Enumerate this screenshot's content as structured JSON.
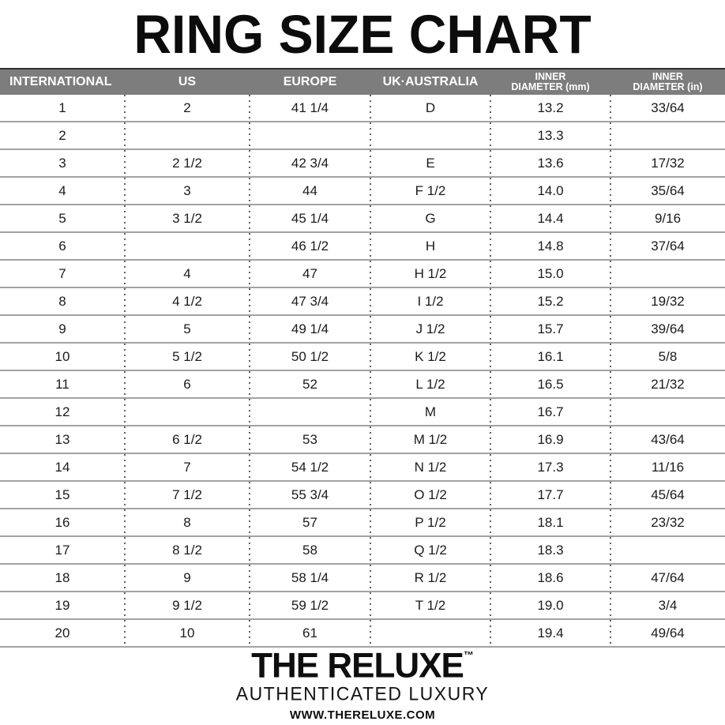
{
  "title": "RING SIZE CHART",
  "colors": {
    "header_bg": "#7d7d7d",
    "header_text": "#ffffff",
    "row_line": "#a2a2a2",
    "dot_separator": "#616161",
    "text": "#1b1b1b"
  },
  "table": {
    "headers": [
      "INTERNATIONAL",
      "US",
      "EUROPE",
      "UK·AUSTRALIA",
      "INNER\nDIAMETER (mm)",
      "INNER\nDIAMETER (in)"
    ],
    "rows": [
      [
        "1",
        "2",
        "41 1/4",
        "D",
        "13.2",
        "33/64"
      ],
      [
        "2",
        "",
        "",
        "",
        "13.3",
        ""
      ],
      [
        "3",
        "2 1/2",
        "42 3/4",
        "E",
        "13.6",
        "17/32"
      ],
      [
        "4",
        "3",
        "44",
        "F 1/2",
        "14.0",
        "35/64"
      ],
      [
        "5",
        "3 1/2",
        "45 1/4",
        "G",
        "14.4",
        "9/16"
      ],
      [
        "6",
        "",
        "46 1/2",
        "H",
        "14.8",
        "37/64"
      ],
      [
        "7",
        "4",
        "47",
        "H 1/2",
        "15.0",
        ""
      ],
      [
        "8",
        "4 1/2",
        "47 3/4",
        "I 1/2",
        "15.2",
        "19/32"
      ],
      [
        "9",
        "5",
        "49 1/4",
        "J 1/2",
        "15.7",
        "39/64"
      ],
      [
        "10",
        "5 1/2",
        "50 1/2",
        "K 1/2",
        "16.1",
        "5/8"
      ],
      [
        "11",
        "6",
        "52",
        "L 1/2",
        "16.5",
        "21/32"
      ],
      [
        "12",
        "",
        "",
        "M",
        "16.7",
        ""
      ],
      [
        "13",
        "6 1/2",
        "53",
        "M 1/2",
        "16.9",
        "43/64"
      ],
      [
        "14",
        "7",
        "54 1/2",
        "N 1/2",
        "17.3",
        "11/16"
      ],
      [
        "15",
        "7 1/2",
        "55 3/4",
        "O 1/2",
        "17.7",
        "45/64"
      ],
      [
        "16",
        "8",
        "57",
        "P 1/2",
        "18.1",
        "23/32"
      ],
      [
        "17",
        "8 1/2",
        "58",
        "Q 1/2",
        "18.3",
        ""
      ],
      [
        "18",
        "9",
        "58 1/4",
        "R 1/2",
        "18.6",
        "47/64"
      ],
      [
        "19",
        "9 1/2",
        "59 1/2",
        "T 1/2",
        "19.0",
        "3/4"
      ],
      [
        "20",
        "10",
        "61",
        "",
        "19.4",
        "49/64"
      ]
    ]
  },
  "footer": {
    "brand": "THE RELUXE",
    "trademark": "™",
    "tagline": "AUTHENTICATED LUXURY",
    "website": "WWW.THERELUXE.COM"
  }
}
